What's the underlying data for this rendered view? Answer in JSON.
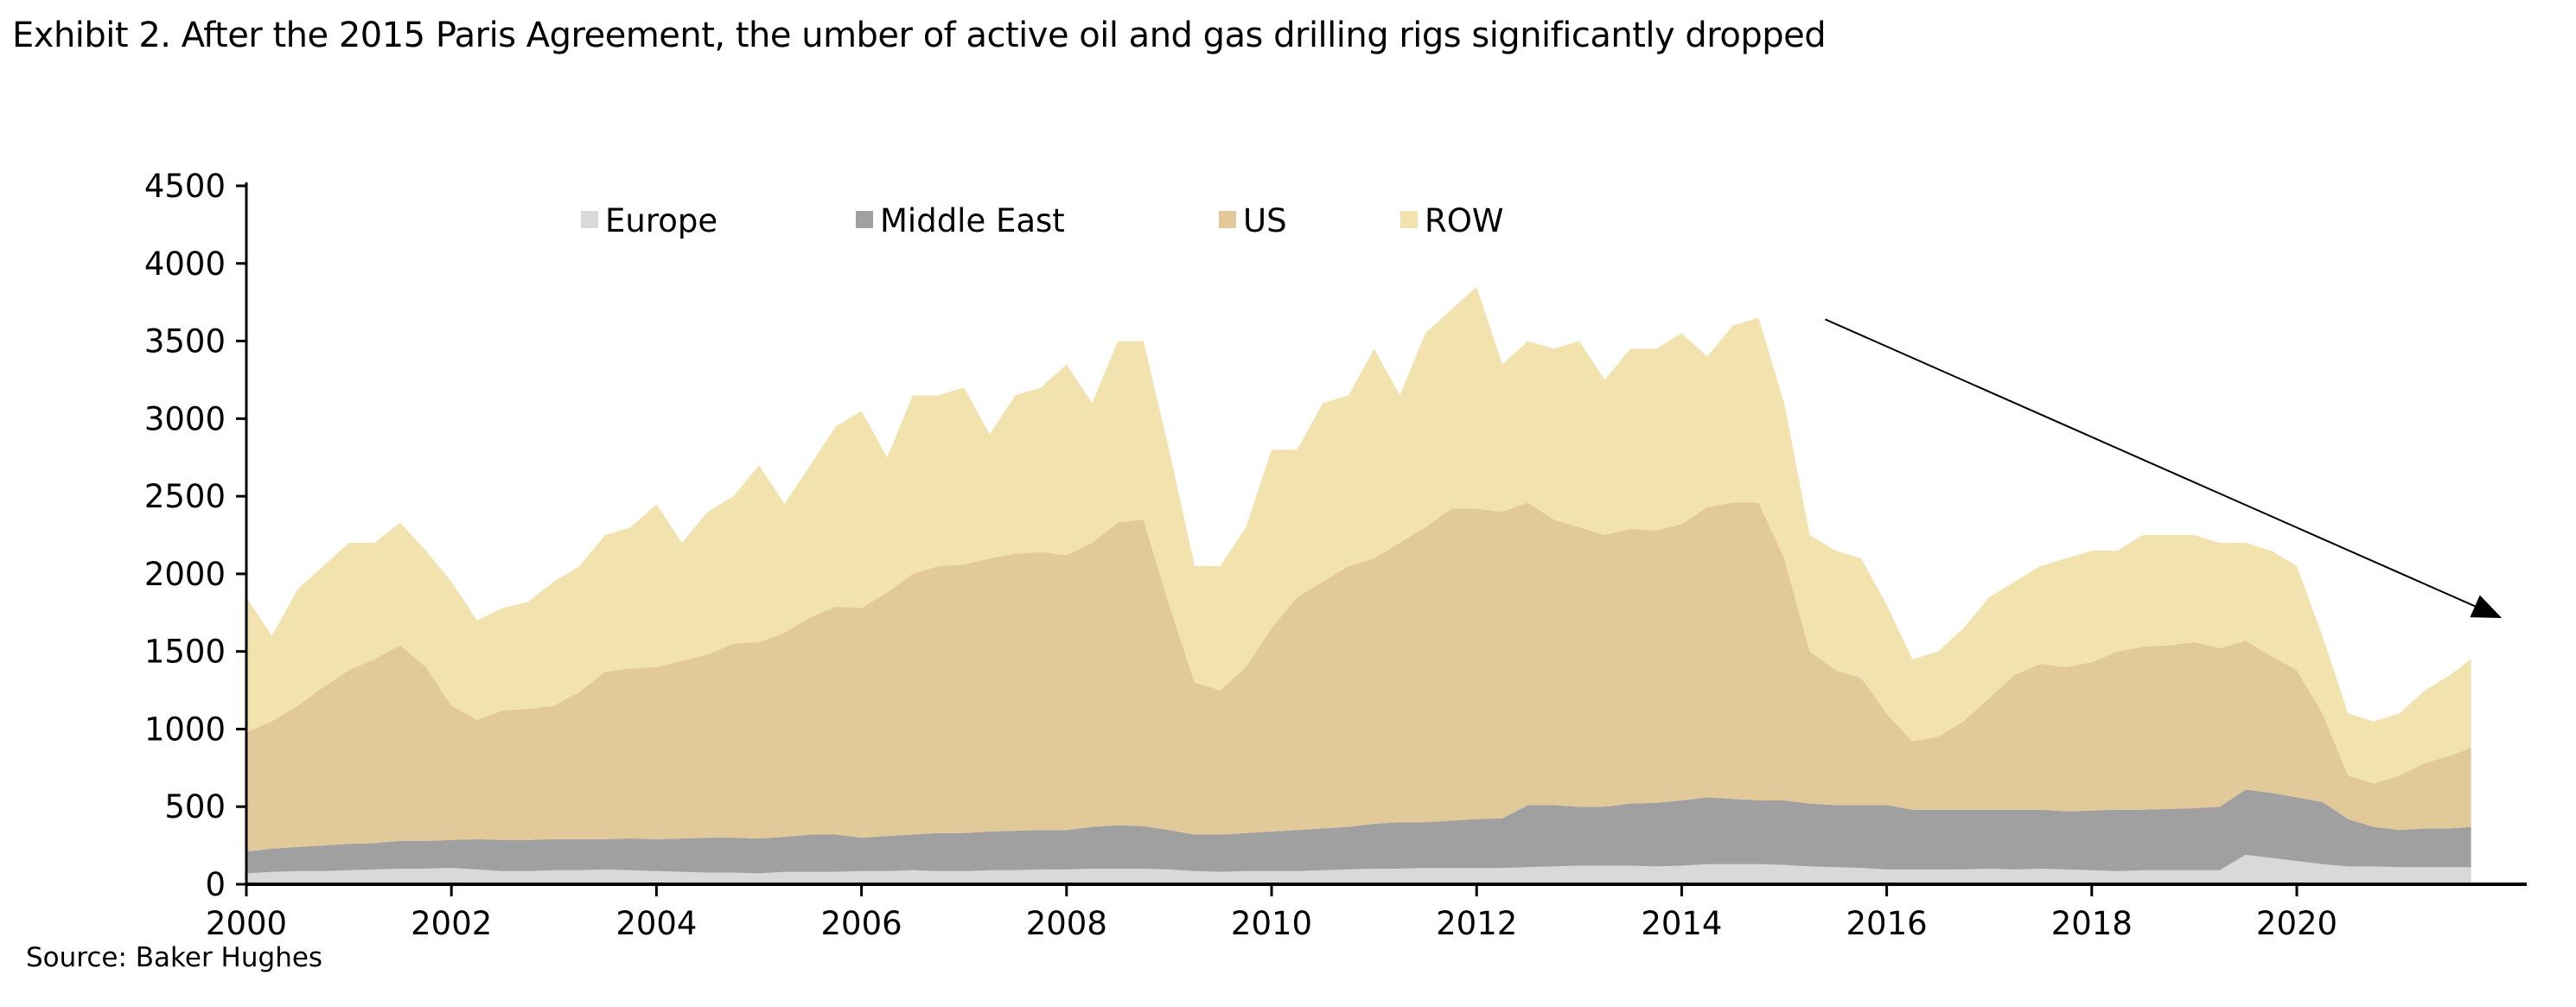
{
  "title": "Exhibit 2. After the 2015 Paris Agreement, the umber of active oil and gas drilling rigs significantly dropped",
  "source": "Source: Baker Hughes",
  "chart_data": {
    "type": "area",
    "stacked": true,
    "title": "",
    "xlabel": "",
    "ylabel": "",
    "xlim": [
      2000,
      2021.7
    ],
    "ylim": [
      0,
      4500
    ],
    "x_ticks": [
      "2000",
      "2002",
      "2004",
      "2006",
      "2008",
      "2010",
      "2012",
      "2014",
      "2016",
      "2018",
      "2020"
    ],
    "y_ticks": [
      "0",
      "500",
      "1000",
      "1500",
      "2000",
      "2500",
      "3000",
      "3500",
      "4000",
      "4500"
    ],
    "grid": false,
    "legend_position": "top",
    "x": [
      2000,
      2000.25,
      2000.5,
      2000.75,
      2001,
      2001.25,
      2001.5,
      2001.75,
      2002,
      2002.25,
      2002.5,
      2002.75,
      2003,
      2003.25,
      2003.5,
      2003.75,
      2004,
      2004.25,
      2004.5,
      2004.75,
      2005,
      2005.25,
      2005.5,
      2005.75,
      2006,
      2006.25,
      2006.5,
      2006.75,
      2007,
      2007.25,
      2007.5,
      2007.75,
      2008,
      2008.25,
      2008.5,
      2008.75,
      2009,
      2009.25,
      2009.5,
      2009.75,
      2010,
      2010.25,
      2010.5,
      2010.75,
      2011,
      2011.25,
      2011.5,
      2011.75,
      2012,
      2012.25,
      2012.5,
      2012.75,
      2013,
      2013.25,
      2013.5,
      2013.75,
      2014,
      2014.25,
      2014.5,
      2014.75,
      2015,
      2015.25,
      2015.5,
      2015.75,
      2016,
      2016.25,
      2016.5,
      2016.75,
      2017,
      2017.25,
      2017.5,
      2017.75,
      2018,
      2018.25,
      2018.5,
      2018.75,
      2019,
      2019.25,
      2019.5,
      2019.75,
      2020,
      2020.25,
      2020.5,
      2020.75,
      2021,
      2021.25,
      2021.5,
      2021.7
    ],
    "series": [
      {
        "name": "Europe",
        "color": "#d9d9d9",
        "values": [
          70,
          80,
          85,
          85,
          90,
          95,
          100,
          100,
          105,
          95,
          85,
          85,
          90,
          90,
          95,
          90,
          85,
          80,
          75,
          75,
          70,
          80,
          80,
          80,
          85,
          85,
          90,
          85,
          85,
          90,
          90,
          95,
          95,
          100,
          100,
          100,
          95,
          85,
          80,
          85,
          85,
          85,
          90,
          95,
          100,
          100,
          105,
          105,
          105,
          105,
          110,
          115,
          120,
          120,
          120,
          115,
          120,
          130,
          130,
          130,
          125,
          115,
          110,
          105,
          95,
          95,
          95,
          95,
          100,
          95,
          100,
          95,
          90,
          85,
          90,
          90,
          90,
          90,
          190,
          170,
          150,
          130,
          115,
          115,
          110,
          110,
          110,
          110
        ]
      },
      {
        "name": "Middle East",
        "color": "#a0a0a0",
        "values": [
          140,
          150,
          155,
          165,
          170,
          170,
          180,
          180,
          180,
          195,
          200,
          200,
          200,
          200,
          195,
          205,
          205,
          215,
          225,
          225,
          225,
          225,
          240,
          240,
          215,
          225,
          230,
          245,
          245,
          250,
          255,
          255,
          255,
          270,
          280,
          275,
          255,
          235,
          240,
          245,
          255,
          265,
          270,
          275,
          290,
          300,
          295,
          305,
          315,
          320,
          400,
          395,
          380,
          380,
          400,
          410,
          420,
          430,
          420,
          410,
          415,
          405,
          400,
          405,
          415,
          385,
          385,
          385,
          380,
          385,
          380,
          375,
          385,
          395,
          390,
          395,
          400,
          410,
          420,
          420,
          410,
          400,
          305,
          255,
          240,
          250,
          250,
          260
        ]
      },
      {
        "name": "US",
        "color": "#e2c999",
        "values": [
          770,
          820,
          910,
          1020,
          1120,
          1185,
          1260,
          1120,
          865,
          770,
          835,
          845,
          860,
          950,
          1080,
          1095,
          1110,
          1145,
          1180,
          1250,
          1265,
          1315,
          1400,
          1470,
          1480,
          1570,
          1680,
          1720,
          1730,
          1760,
          1785,
          1790,
          1770,
          1830,
          1950,
          1975,
          1450,
          980,
          930,
          1070,
          1310,
          1500,
          1590,
          1680,
          1710,
          1800,
          1900,
          2010,
          2000,
          1975,
          1950,
          1840,
          1800,
          1750,
          1770,
          1755,
          1780,
          1870,
          1910,
          1920,
          1560,
          980,
          870,
          820,
          590,
          440,
          470,
          570,
          720,
          870,
          940,
          930,
          955,
          1020,
          1050,
          1055,
          1070,
          1020,
          960,
          880,
          820,
          570,
          280,
          280,
          350,
          420,
          470,
          510
        ]
      },
      {
        "name": "ROW",
        "color": "#f1e2ae",
        "values": [
          870,
          550,
          750,
          780,
          820,
          750,
          790,
          750,
          800,
          640,
          660,
          690,
          800,
          810,
          880,
          910,
          1050,
          760,
          920,
          950,
          1140,
          830,
          980,
          1160,
          1270,
          870,
          1150,
          1100,
          1140,
          800,
          1020,
          1060,
          1230,
          900,
          1170,
          1150,
          1000,
          750,
          800,
          900,
          1150,
          950,
          1150,
          1100,
          1350,
          950,
          1250,
          1280,
          1430,
          950,
          1040,
          1100,
          1200,
          1000,
          1160,
          1170,
          1230,
          970,
          1140,
          1190,
          1000,
          750,
          770,
          770,
          700,
          530,
          550,
          600,
          650,
          600,
          630,
          700,
          720,
          650,
          720,
          710,
          690,
          680,
          630,
          680,
          670,
          500,
          400,
          400,
          400,
          470,
          520,
          570
        ]
      }
    ],
    "annotations": [
      {
        "type": "arrow",
        "from": [
          2015.4,
          3640
        ],
        "to": [
          2022.0,
          1715
        ]
      }
    ]
  }
}
